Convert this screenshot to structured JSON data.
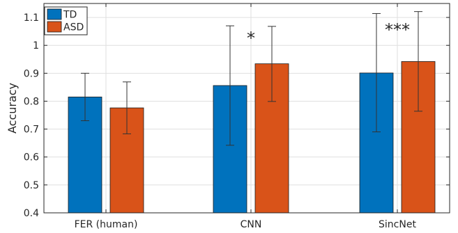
{
  "chart_data": {
    "type": "bar",
    "categories": [
      "FER (human)",
      "CNN",
      "SincNet"
    ],
    "series": [
      {
        "name": "TD",
        "color": "#0072BD",
        "values": [
          0.815,
          0.856,
          0.901
        ],
        "err_low": [
          0.73,
          0.642,
          0.69
        ],
        "err_high": [
          0.9,
          1.07,
          1.114
        ]
      },
      {
        "name": "ASD",
        "color": "#D95319",
        "values": [
          0.776,
          0.934,
          0.942
        ],
        "err_low": [
          0.683,
          0.799,
          0.764
        ],
        "err_high": [
          0.869,
          1.068,
          1.121
        ]
      }
    ],
    "ylabel": "Accuracy",
    "xlabel": "",
    "ylim": [
      0.4,
      1.15
    ],
    "yticks": [
      0.4,
      0.5,
      0.6,
      0.7,
      0.8,
      0.9,
      1,
      1.1
    ],
    "grid": true,
    "legend_placement": "top-left",
    "annotations": [
      {
        "category": "CNN",
        "text": "*",
        "y": 1.03
      },
      {
        "category": "SincNet",
        "text": "***",
        "y": 1.06
      }
    ]
  }
}
